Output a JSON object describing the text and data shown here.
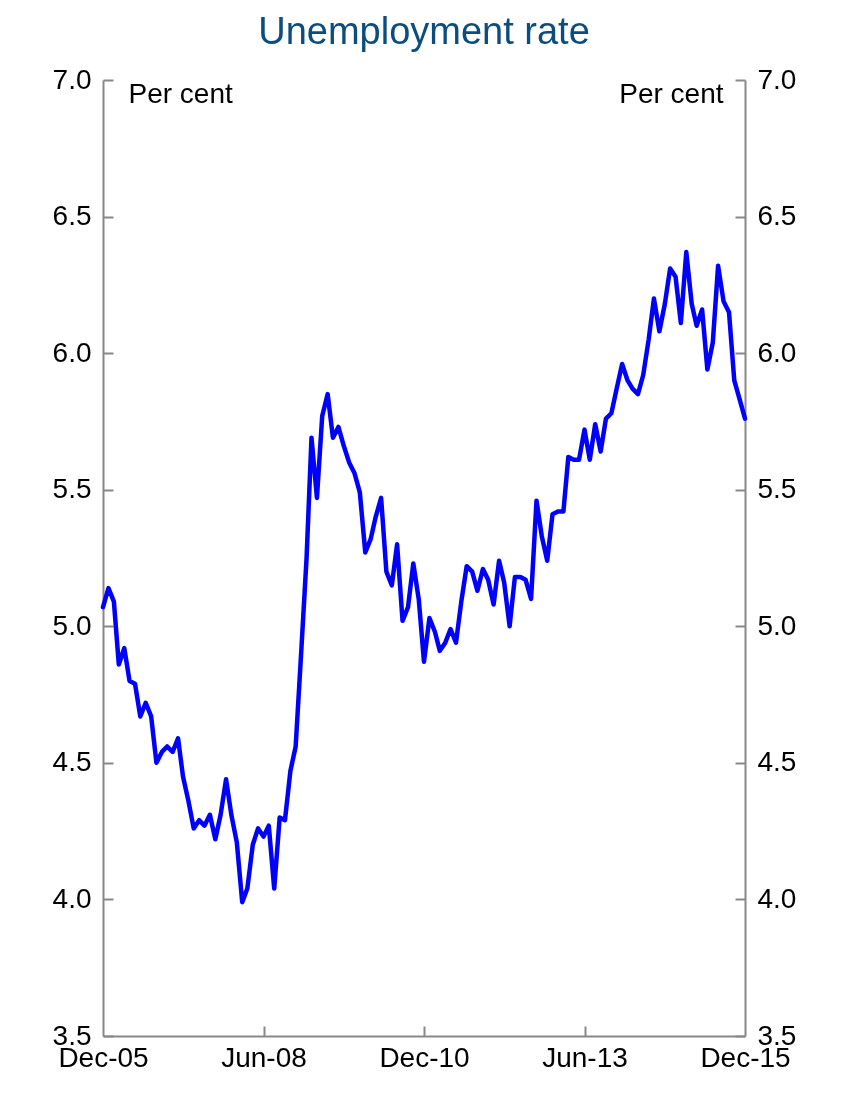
{
  "chart_data": {
    "type": "line",
    "title": "Unemployment rate",
    "ylabel": "Per cent",
    "y2label": "Per cent",
    "x": [
      "2005-12",
      "2006-01",
      "2006-02",
      "2006-03",
      "2006-04",
      "2006-05",
      "2006-06",
      "2006-07",
      "2006-08",
      "2006-09",
      "2006-10",
      "2006-11",
      "2006-12",
      "2007-01",
      "2007-02",
      "2007-03",
      "2007-04",
      "2007-05",
      "2007-06",
      "2007-07",
      "2007-08",
      "2007-09",
      "2007-10",
      "2007-11",
      "2007-12",
      "2008-01",
      "2008-02",
      "2008-03",
      "2008-04",
      "2008-05",
      "2008-06",
      "2008-07",
      "2008-08",
      "2008-09",
      "2008-10",
      "2008-11",
      "2008-12",
      "2009-01",
      "2009-02",
      "2009-03",
      "2009-04",
      "2009-05",
      "2009-06",
      "2009-07",
      "2009-08",
      "2009-09",
      "2009-10",
      "2009-11",
      "2009-12",
      "2010-01",
      "2010-02",
      "2010-03",
      "2010-04",
      "2010-05",
      "2010-06",
      "2010-07",
      "2010-08",
      "2010-09",
      "2010-10",
      "2010-11",
      "2010-12",
      "2011-01",
      "2011-02",
      "2011-03",
      "2011-04",
      "2011-05",
      "2011-06",
      "2011-07",
      "2011-08",
      "2011-09",
      "2011-10",
      "2011-11",
      "2011-12",
      "2012-01",
      "2012-02",
      "2012-03",
      "2012-04",
      "2012-05",
      "2012-06",
      "2012-07",
      "2012-08",
      "2012-09",
      "2012-10",
      "2012-11",
      "2012-12",
      "2013-01",
      "2013-02",
      "2013-03",
      "2013-04",
      "2013-05",
      "2013-06",
      "2013-07",
      "2013-08",
      "2013-09",
      "2013-10",
      "2013-11",
      "2013-12",
      "2014-01",
      "2014-02",
      "2014-03",
      "2014-04",
      "2014-05",
      "2014-06",
      "2014-07",
      "2014-08",
      "2014-09",
      "2014-10",
      "2014-11",
      "2014-12",
      "2015-01",
      "2015-02",
      "2015-03",
      "2015-04",
      "2015-05",
      "2015-06",
      "2015-07",
      "2015-08",
      "2015-09",
      "2015-10",
      "2015-11",
      "2015-12"
    ],
    "series": [
      {
        "color": "#0000ff",
        "values": [
          5.07,
          5.14,
          5.09,
          4.86,
          4.92,
          4.8,
          4.79,
          4.67,
          4.72,
          4.67,
          4.5,
          4.54,
          4.56,
          4.54,
          4.59,
          4.45,
          4.36,
          4.26,
          4.29,
          4.27,
          4.31,
          4.22,
          4.31,
          4.44,
          4.31,
          4.21,
          3.99,
          4.04,
          4.2,
          4.26,
          4.23,
          4.27,
          4.04,
          4.3,
          4.29,
          4.47,
          4.56,
          4.9,
          5.25,
          5.69,
          5.47,
          5.77,
          5.85,
          5.69,
          5.73,
          5.66,
          5.6,
          5.56,
          5.49,
          5.27,
          5.32,
          5.4,
          5.47,
          5.2,
          5.15,
          5.3,
          5.02,
          5.07,
          5.23,
          5.1,
          4.87,
          5.03,
          4.98,
          4.91,
          4.94,
          4.99,
          4.94,
          5.09,
          5.22,
          5.2,
          5.13,
          5.21,
          5.17,
          5.08,
          5.24,
          5.16,
          5.0,
          5.18,
          5.18,
          5.17,
          5.1,
          5.46,
          5.33,
          5.24,
          5.41,
          5.42,
          5.42,
          5.62,
          5.61,
          5.61,
          5.72,
          5.61,
          5.74,
          5.64,
          5.76,
          5.78,
          5.87,
          5.96,
          5.9,
          5.87,
          5.85,
          5.92,
          6.05,
          6.2,
          6.08,
          6.18,
          6.31,
          6.28,
          6.11,
          6.37,
          6.18,
          6.1,
          6.16,
          5.94,
          6.04,
          6.32,
          6.19,
          6.15,
          5.9,
          5.83,
          5.76
        ]
      }
    ],
    "xlim": [
      "2005-12",
      "2015-12"
    ],
    "xticks": [
      {
        "value": "2005-12",
        "label": "Dec-05"
      },
      {
        "value": "2008-06",
        "label": "Jun-08"
      },
      {
        "value": "2010-12",
        "label": "Dec-10"
      },
      {
        "value": "2013-06",
        "label": "Jun-13"
      },
      {
        "value": "2015-12",
        "label": "Dec-15"
      }
    ],
    "ylim": [
      3.5,
      7.0
    ],
    "yticks": [
      {
        "value": 3.5,
        "label": "3.5"
      },
      {
        "value": 4,
        "label": "4.0"
      },
      {
        "value": 4.5,
        "label": "4.5"
      },
      {
        "value": 5,
        "label": "5.0"
      },
      {
        "value": 5.5,
        "label": "5.5"
      },
      {
        "value": 6,
        "label": "6.0"
      },
      {
        "value": 6.5,
        "label": "6.5"
      },
      {
        "value": 7,
        "label": "7.0"
      }
    ],
    "y2lim": [
      3.5,
      7.0
    ],
    "y2ticks": [
      {
        "value": 3.5,
        "label": "3.5"
      },
      {
        "value": 4,
        "label": "4.0"
      },
      {
        "value": 4.5,
        "label": "4.5"
      },
      {
        "value": 5,
        "label": "5.0"
      },
      {
        "value": 5.5,
        "label": "5.5"
      },
      {
        "value": 6,
        "label": "6.0"
      },
      {
        "value": 6.5,
        "label": "6.5"
      },
      {
        "value": 7,
        "label": "7.0"
      }
    ],
    "grid": false,
    "marker": "none",
    "line_style": "solid"
  }
}
